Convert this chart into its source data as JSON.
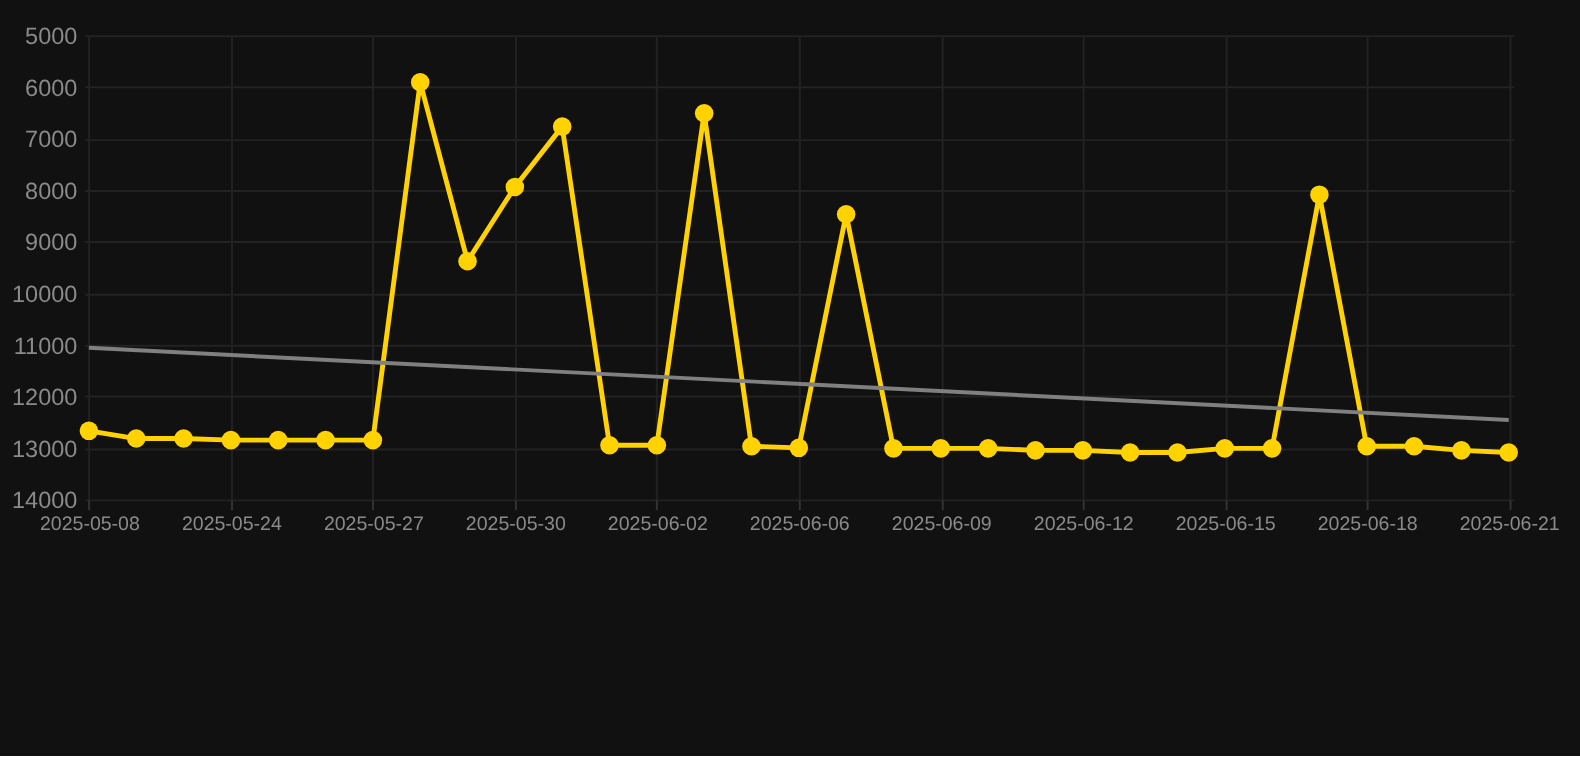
{
  "chart_data": {
    "type": "line",
    "categories": [
      "2025-05-08",
      null,
      null,
      "2025-05-24",
      null,
      null,
      "2025-05-27",
      null,
      null,
      "2025-05-30",
      null,
      null,
      "2025-06-02",
      null,
      null,
      "2025-06-06",
      null,
      null,
      "2025-06-09",
      null,
      null,
      "2025-06-12",
      null,
      null,
      "2025-06-15",
      null,
      null,
      "2025-06-18",
      null,
      null,
      "2025-06-21"
    ],
    "series": [
      {
        "color": "#ffd200",
        "marker": "circle",
        "values": [
          12670,
          12820,
          12820,
          12850,
          12850,
          12850,
          12850,
          5910,
          9380,
          7940,
          6770,
          12950,
          12950,
          6510,
          12970,
          13000,
          8470,
          13010,
          13010,
          13010,
          13050,
          13050,
          13090,
          13090,
          13010,
          13010,
          8090,
          12970,
          12970,
          13050,
          13090
        ]
      },
      {
        "type": "line",
        "color": "#808080",
        "marker": "none",
        "values": [
          11060,
          null,
          null,
          null,
          null,
          null,
          null,
          null,
          null,
          null,
          null,
          null,
          null,
          null,
          null,
          null,
          null,
          null,
          null,
          null,
          null,
          null,
          null,
          null,
          null,
          null,
          null,
          null,
          null,
          null,
          12460
        ]
      }
    ],
    "ylim": [
      14000,
      5000
    ],
    "yticks": [
      5000,
      6000,
      7000,
      8000,
      9000,
      10000,
      11000,
      12000,
      13000,
      14000
    ],
    "grid": true
  }
}
